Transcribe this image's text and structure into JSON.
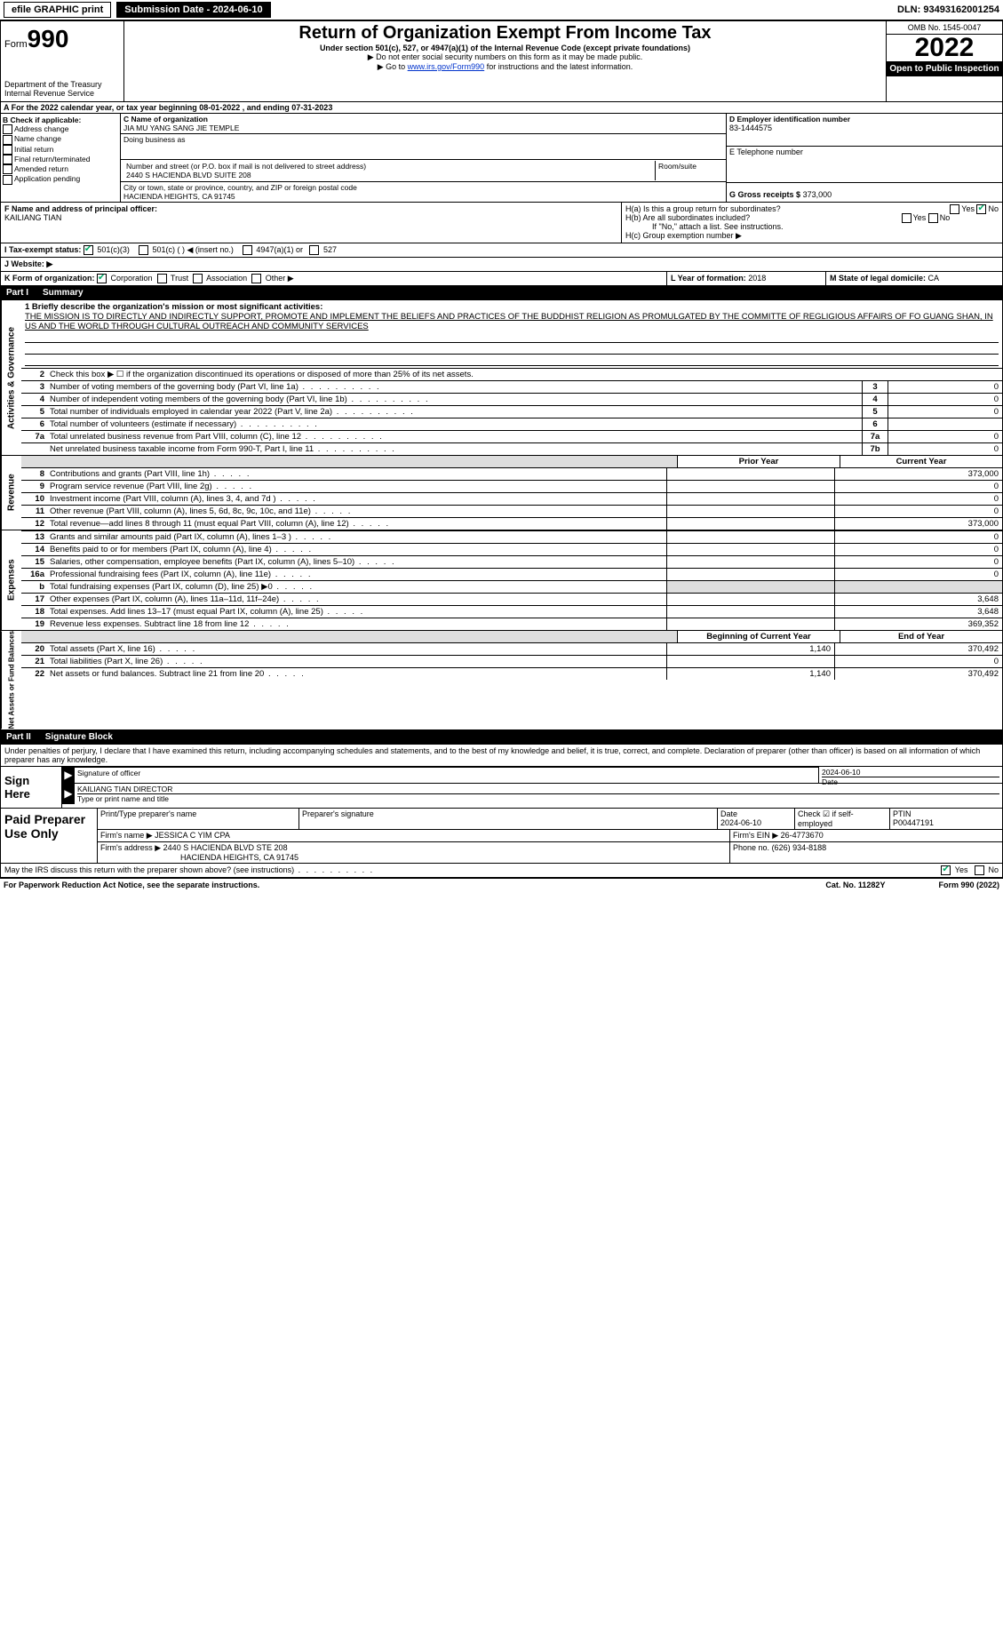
{
  "topbar": {
    "efile": "efile GRAPHIC print",
    "submission_label": "Submission Date - 2024-06-10",
    "dln": "DLN: 93493162001254"
  },
  "header": {
    "form_prefix": "Form",
    "form_num": "990",
    "dept1": "Department of the Treasury",
    "dept2": "Internal Revenue Service",
    "title": "Return of Organization Exempt From Income Tax",
    "subtitle": "Under section 501(c), 527, or 4947(a)(1) of the Internal Revenue Code (except private foundations)",
    "note1": "▶ Do not enter social security numbers on this form as it may be made public.",
    "note2_pre": "▶ Go to ",
    "note2_link": "www.irs.gov/Form990",
    "note2_post": " for instructions and the latest information.",
    "omb": "OMB No. 1545-0047",
    "year": "2022",
    "open": "Open to Public Inspection"
  },
  "A": {
    "text": "A For the 2022 calendar year, or tax year beginning 08-01-2022   , and ending 07-31-2023"
  },
  "B": {
    "title": "B Check if applicable:",
    "opts": [
      "Address change",
      "Name change",
      "Initial return",
      "Final return/terminated",
      "Amended return",
      "Application pending"
    ]
  },
  "C": {
    "name_lbl": "C Name of organization",
    "name": "JIA MU YANG SANG JIE TEMPLE",
    "dba_lbl": "Doing business as",
    "dba": "",
    "street_lbl": "Number and street (or P.O. box if mail is not delivered to street address)",
    "room_lbl": "Room/suite",
    "street": "2440 S HACIENDA BLVD SUITE 208",
    "city_lbl": "City or town, state or province, country, and ZIP or foreign postal code",
    "city": "HACIENDA HEIGHTS, CA  91745"
  },
  "D": {
    "lbl": "D Employer identification number",
    "val": "83-1444575"
  },
  "E": {
    "lbl": "E Telephone number",
    "val": ""
  },
  "G": {
    "lbl": "G Gross receipts $",
    "val": "373,000"
  },
  "F": {
    "lbl": "F  Name and address of principal officer:",
    "val": "KAILIANG TIAN"
  },
  "H": {
    "a": "H(a)  Is this a group return for subordinates?",
    "a_yes": "Yes",
    "a_no": "No",
    "b": "H(b)  Are all subordinates included?",
    "b_yes": "Yes",
    "b_no": "No",
    "b_note": "If \"No,\" attach a list. See instructions.",
    "c": "H(c)  Group exemption number ▶"
  },
  "I": {
    "lbl": "I   Tax-exempt status:",
    "opt1": "501(c)(3)",
    "opt2": "501(c) (  ) ◀ (insert no.)",
    "opt3": "4947(a)(1) or",
    "opt4": "527"
  },
  "J": {
    "lbl": "J   Website: ▶"
  },
  "K": {
    "lbl": "K Form of organization:",
    "opts": [
      "Corporation",
      "Trust",
      "Association",
      "Other ▶"
    ]
  },
  "L": {
    "lbl": "L Year of formation:",
    "val": "2018"
  },
  "M": {
    "lbl": "M State of legal domicile:",
    "val": "CA"
  },
  "partI": {
    "label": "Part I",
    "title": "Summary"
  },
  "activities": {
    "vtab": "Activities & Governance",
    "l1_lbl": "1  Briefly describe the organization's mission or most significant activities:",
    "l1_text": "THE MISSION IS TO DIRECTLY AND INDIRECTLY SUPPORT, PROMOTE AND IMPLEMENT THE BELIEFS AND PRACTICES OF THE BUDDHIST RELIGION AS PROMULGATED BY THE COMMITTE OF REGLIGIOUS AFFAIRS OF FO GUANG SHAN, IN US AND THE WORLD THROUGH CULTURAL OUTREACH AND COMMUNITY SERVICES",
    "l2": "Check this box ▶ ☐  if the organization discontinued its operations or disposed of more than 25% of its net assets.",
    "rows": [
      {
        "n": "3",
        "t": "Number of voting members of the governing body (Part VI, line 1a)",
        "box": "3",
        "v": "0"
      },
      {
        "n": "4",
        "t": "Number of independent voting members of the governing body (Part VI, line 1b)",
        "box": "4",
        "v": "0"
      },
      {
        "n": "5",
        "t": "Total number of individuals employed in calendar year 2022 (Part V, line 2a)",
        "box": "5",
        "v": "0"
      },
      {
        "n": "6",
        "t": "Total number of volunteers (estimate if necessary)",
        "box": "6",
        "v": ""
      },
      {
        "n": "7a",
        "t": "Total unrelated business revenue from Part VIII, column (C), line 12",
        "box": "7a",
        "v": "0"
      },
      {
        "n": "",
        "t": "Net unrelated business taxable income from Form 990-T, Part I, line 11",
        "box": "7b",
        "v": "0"
      }
    ]
  },
  "revenue": {
    "vtab": "Revenue",
    "hdr1": "Prior Year",
    "hdr2": "Current Year",
    "rows": [
      {
        "n": "8",
        "t": "Contributions and grants (Part VIII, line 1h)",
        "p": "",
        "c": "373,000"
      },
      {
        "n": "9",
        "t": "Program service revenue (Part VIII, line 2g)",
        "p": "",
        "c": "0"
      },
      {
        "n": "10",
        "t": "Investment income (Part VIII, column (A), lines 3, 4, and 7d )",
        "p": "",
        "c": "0"
      },
      {
        "n": "11",
        "t": "Other revenue (Part VIII, column (A), lines 5, 6d, 8c, 9c, 10c, and 11e)",
        "p": "",
        "c": "0"
      },
      {
        "n": "12",
        "t": "Total revenue—add lines 8 through 11 (must equal Part VIII, column (A), line 12)",
        "p": "",
        "c": "373,000"
      }
    ]
  },
  "expenses": {
    "vtab": "Expenses",
    "rows": [
      {
        "n": "13",
        "t": "Grants and similar amounts paid (Part IX, column (A), lines 1–3 )",
        "p": "",
        "c": "0"
      },
      {
        "n": "14",
        "t": "Benefits paid to or for members (Part IX, column (A), line 4)",
        "p": "",
        "c": "0"
      },
      {
        "n": "15",
        "t": "Salaries, other compensation, employee benefits (Part IX, column (A), lines 5–10)",
        "p": "",
        "c": "0"
      },
      {
        "n": "16a",
        "t": "Professional fundraising fees (Part IX, column (A), line 11e)",
        "p": "",
        "c": "0"
      },
      {
        "n": "b",
        "t": "Total fundraising expenses (Part IX, column (D), line 25) ▶0",
        "p": "grey",
        "c": "grey"
      },
      {
        "n": "17",
        "t": "Other expenses (Part IX, column (A), lines 11a–11d, 11f–24e)",
        "p": "",
        "c": "3,648"
      },
      {
        "n": "18",
        "t": "Total expenses. Add lines 13–17 (must equal Part IX, column (A), line 25)",
        "p": "",
        "c": "3,648"
      },
      {
        "n": "19",
        "t": "Revenue less expenses. Subtract line 18 from line 12",
        "p": "",
        "c": "369,352"
      }
    ]
  },
  "netassets": {
    "vtab": "Net Assets or Fund Balances",
    "hdr1": "Beginning of Current Year",
    "hdr2": "End of Year",
    "rows": [
      {
        "n": "20",
        "t": "Total assets (Part X, line 16)",
        "p": "1,140",
        "c": "370,492"
      },
      {
        "n": "21",
        "t": "Total liabilities (Part X, line 26)",
        "p": "",
        "c": "0"
      },
      {
        "n": "22",
        "t": "Net assets or fund balances. Subtract line 21 from line 20",
        "p": "1,140",
        "c": "370,492"
      }
    ]
  },
  "partII": {
    "label": "Part II",
    "title": "Signature Block"
  },
  "sig_intro": "Under penalties of perjury, I declare that I have examined this return, including accompanying schedules and statements, and to the best of my knowledge and belief, it is true, correct, and complete. Declaration of preparer (other than officer) is based on all information of which preparer has any knowledge.",
  "sign": {
    "lbl": "Sign Here",
    "sig_lbl": "Signature of officer",
    "date_lbl": "Date",
    "date": "2024-06-10",
    "name": "KAILIANG TIAN  DIRECTOR",
    "name_lbl": "Type or print name and title"
  },
  "prep": {
    "lbl": "Paid Preparer Use Only",
    "h1": "Print/Type preparer's name",
    "h2": "Preparer's signature",
    "h3": "Date",
    "h3v": "2024-06-10",
    "h4": "Check ☑ if self-employed",
    "h5": "PTIN",
    "h5v": "P00447191",
    "firm_lbl": "Firm's name    ▶",
    "firm": "JESSICA C YIM CPA",
    "ein_lbl": "Firm's EIN ▶",
    "ein": "26-4773670",
    "addr_lbl": "Firm's address ▶",
    "addr1": "2440 S HACIENDA BLVD STE 208",
    "addr2": "HACIENDA HEIGHTS, CA  91745",
    "phone_lbl": "Phone no.",
    "phone": "(626) 934-8188"
  },
  "irs_discuss": "May the IRS discuss this return with the preparer shown above? (see instructions)",
  "irs_yes": "Yes",
  "irs_no": "No",
  "footer": {
    "left": "For Paperwork Reduction Act Notice, see the separate instructions.",
    "mid": "Cat. No. 11282Y",
    "right": "Form 990 (2022)"
  }
}
